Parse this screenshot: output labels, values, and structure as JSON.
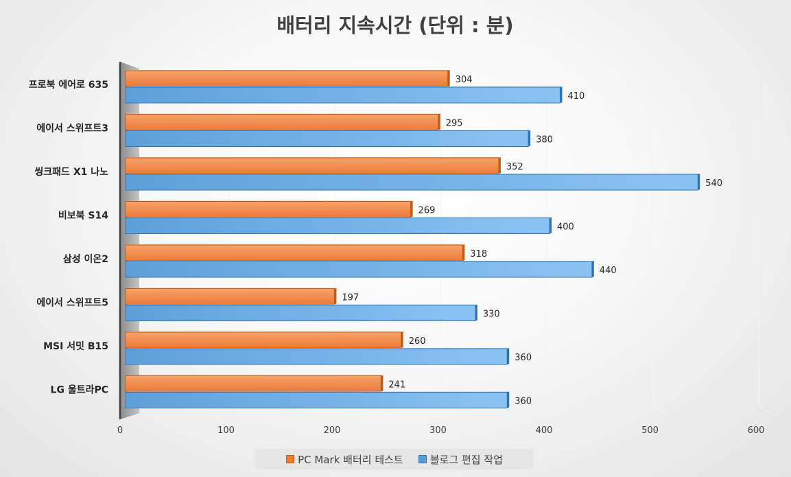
{
  "chart_data": {
    "type": "bar",
    "orientation": "horizontal",
    "title": "배터리 지속시간 (단위 : 분)",
    "categories": [
      "프로북 에어로 635",
      "에이서 스위프트3",
      "씽크패드 X1 나노",
      "비보북 S14",
      "삼성 이온2",
      "에이서 스위프트5",
      "MSI 서밋 B15",
      "LG 울트라PC"
    ],
    "series": [
      {
        "name": "PC Mark 배터리 테스트",
        "color": "#ed7d31",
        "values": [
          304,
          295,
          352,
          269,
          318,
          197,
          260,
          241
        ]
      },
      {
        "name": "블로그 편집 작업",
        "color": "#5b9bd5",
        "values": [
          410,
          380,
          540,
          400,
          440,
          330,
          360,
          360
        ]
      }
    ],
    "xlim": [
      0,
      600
    ],
    "xticks": [
      0,
      100,
      200,
      300,
      400,
      500,
      600
    ],
    "legend_position": "bottom",
    "grid": true
  }
}
